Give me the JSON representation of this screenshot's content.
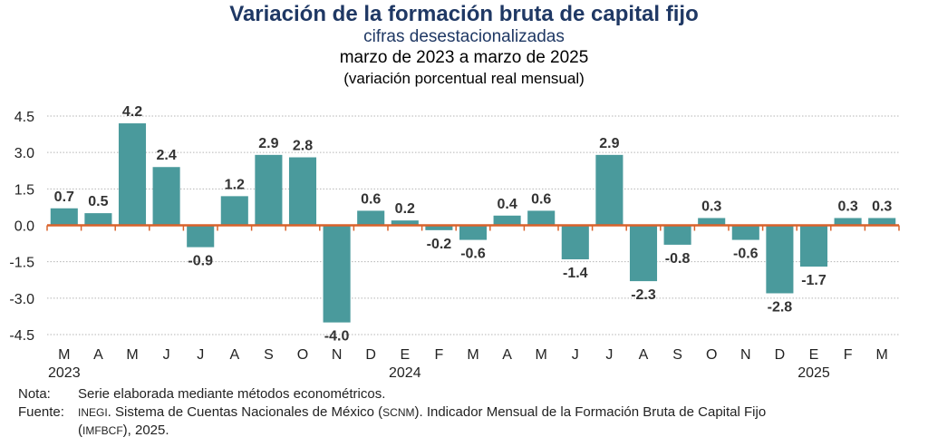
{
  "title": "Variación de la formación bruta de capital fijo",
  "subtitle": "cifras desestacionalizadas",
  "period": "marzo de 2023 a marzo de 2025",
  "units": "(variación porcentual real mensual)",
  "colors": {
    "bar": "#4a9a9c",
    "zero_line": "#d9622b",
    "title": "#1f3864"
  },
  "chart_data": {
    "type": "bar",
    "categories": [
      "M",
      "A",
      "M",
      "J",
      "J",
      "A",
      "S",
      "O",
      "N",
      "D",
      "E",
      "F",
      "M",
      "A",
      "M",
      "J",
      "J",
      "A",
      "S",
      "O",
      "N",
      "D",
      "E",
      "F",
      "M"
    ],
    "values": [
      0.7,
      0.5,
      4.2,
      2.4,
      -0.9,
      1.2,
      2.9,
      2.8,
      -4.0,
      0.6,
      0.2,
      -0.2,
      -0.6,
      0.4,
      0.6,
      -1.4,
      2.9,
      -2.3,
      -0.8,
      0.3,
      -0.6,
      -2.8,
      -1.7,
      0.3,
      0.3
    ],
    "value_labels": [
      "0.7",
      "0.5",
      "4.2",
      "2.4",
      "-0.9",
      "1.2",
      "2.9",
      "2.8",
      "-4.0",
      "0.6",
      "0.2",
      "-0.2",
      "-0.6",
      "0.4",
      "0.6",
      "-1.4",
      "2.9",
      "-2.3",
      "-0.8",
      "0.3",
      "-0.6",
      "-2.8",
      "-1.7",
      "0.3",
      "0.3"
    ],
    "years": [
      {
        "label": "2023",
        "index": 0
      },
      {
        "label": "2024",
        "index": 10
      },
      {
        "label": "2025",
        "index": 22
      }
    ],
    "yticks": [
      "4.5",
      "3.0",
      "1.5",
      "0.0",
      "-1.5",
      "-3.0",
      "-4.5"
    ],
    "ytick_values": [
      4.5,
      3.0,
      1.5,
      0.0,
      -1.5,
      -3.0,
      -4.5
    ],
    "ylim": [
      -4.5,
      4.5
    ],
    "grid": true,
    "legend": "none"
  },
  "notes": {
    "nota_label": "Nota:",
    "nota_text": "Serie elaborada mediante métodos econométricos.",
    "fuente_label": "Fuente:",
    "fuente_abbr1": "INEGI",
    "fuente_text1": ". Sistema de Cuentas Nacionales de México (",
    "fuente_abbr2": "SCNM",
    "fuente_text2": "). Indicador Mensual de la Formación Bruta de Capital Fijo",
    "fuente_open": "(",
    "fuente_abbr3": "IMFBCF",
    "fuente_text3": "), 2025."
  }
}
